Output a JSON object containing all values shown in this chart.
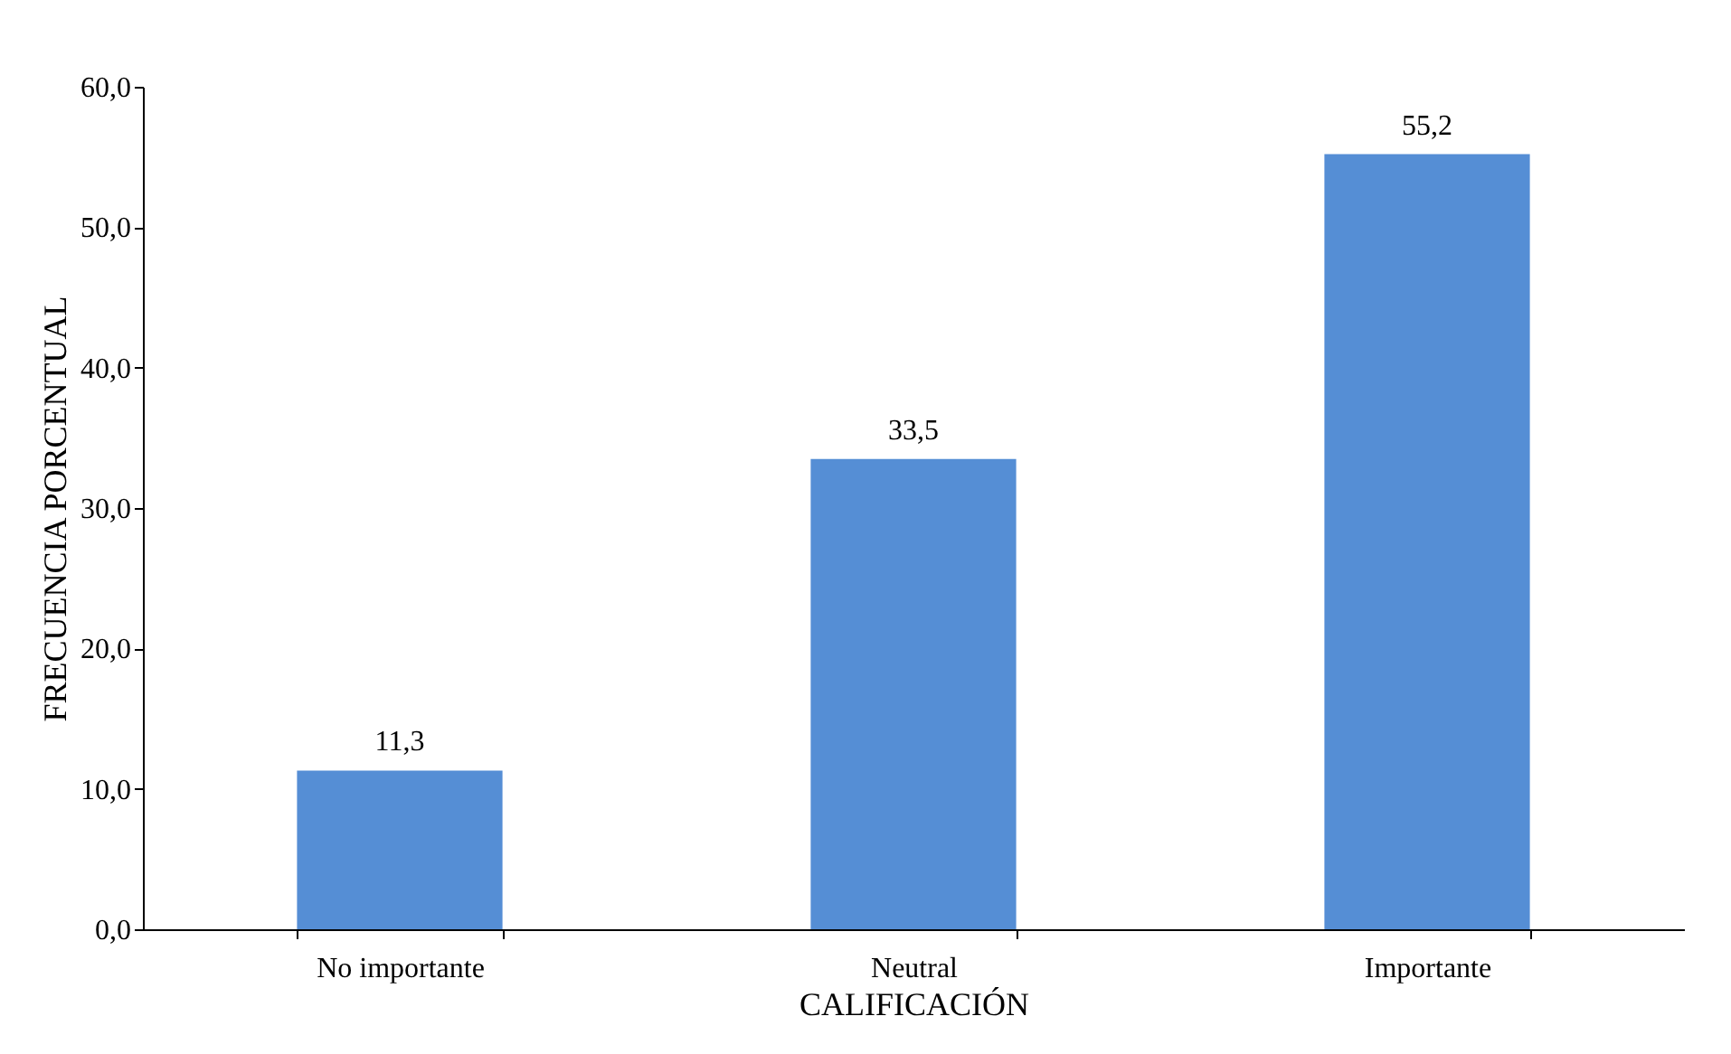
{
  "chart_data": {
    "type": "bar",
    "xlabel": "CALIFICACIÓN",
    "ylabel": "FRECUENCIA PORCENTUAL",
    "categories": [
      "No importante",
      "Neutral",
      "Importante"
    ],
    "values": [
      11.3,
      33.5,
      55.2
    ],
    "value_labels": [
      "11,3",
      "33,5",
      "55,2"
    ],
    "color": "#558ed5",
    "ylim": [
      0,
      60
    ],
    "yticks": [
      {
        "value": 0,
        "label": "0,0"
      },
      {
        "value": 10,
        "label": "10,0"
      },
      {
        "value": 20,
        "label": "20,0"
      },
      {
        "value": 30,
        "label": "30,0"
      },
      {
        "value": 40,
        "label": "40,0"
      },
      {
        "value": 50,
        "label": "50,0"
      },
      {
        "value": 60,
        "label": "60,0"
      }
    ],
    "grid": false
  }
}
